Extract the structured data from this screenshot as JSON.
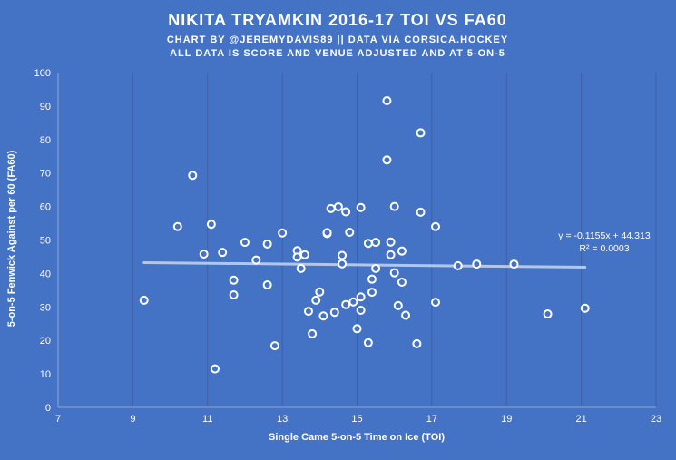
{
  "chart_data": {
    "type": "scatter",
    "title": "NIKITA  TRYAMKIN  2016-17 TOI VS FA60",
    "subtitle_lines": [
      "CHART BY @JEREMYDAVIS89  || DATA VIA CORSICA.HOCKEY",
      "ALL DATA IS SCORE AND VENUE ADJUSTED AND AT 5-ON-5"
    ],
    "xlabel": "Single Came 5-on-5 Time on Ice (TOI)",
    "ylabel": "5-on-5 Fenwick Against per 60 (FA60)",
    "xlim": [
      7,
      23
    ],
    "ylim": [
      0,
      100
    ],
    "x_ticks": [
      7,
      9,
      11,
      13,
      15,
      17,
      19,
      21,
      23
    ],
    "y_ticks": [
      0,
      10,
      20,
      30,
      40,
      50,
      60,
      70,
      80,
      90,
      100
    ],
    "grid": "vertical",
    "trendline": {
      "slope": -0.1155,
      "intercept": 44.313,
      "x_range": [
        9.3,
        21.1
      ],
      "equation": "y = -0.1155x + 44.313",
      "r_squared": "R² = 0.0003"
    },
    "points": [
      {
        "x": 9.3,
        "y": 32
      },
      {
        "x": 10.2,
        "y": 54
      },
      {
        "x": 10.6,
        "y": 69.3
      },
      {
        "x": 10.9,
        "y": 45.8
      },
      {
        "x": 11.1,
        "y": 54.7
      },
      {
        "x": 11.2,
        "y": 11.5
      },
      {
        "x": 11.4,
        "y": 46.3
      },
      {
        "x": 11.7,
        "y": 38
      },
      {
        "x": 11.7,
        "y": 33.6
      },
      {
        "x": 12.0,
        "y": 49.3
      },
      {
        "x": 12.3,
        "y": 44
      },
      {
        "x": 12.6,
        "y": 48.8
      },
      {
        "x": 12.6,
        "y": 36.6
      },
      {
        "x": 12.8,
        "y": 18.4
      },
      {
        "x": 13.0,
        "y": 52.1
      },
      {
        "x": 13.4,
        "y": 46.8
      },
      {
        "x": 13.4,
        "y": 44.9
      },
      {
        "x": 13.5,
        "y": 41.5
      },
      {
        "x": 13.6,
        "y": 45.6
      },
      {
        "x": 13.7,
        "y": 28.7
      },
      {
        "x": 13.8,
        "y": 22
      },
      {
        "x": 13.9,
        "y": 32
      },
      {
        "x": 14.0,
        "y": 34.5
      },
      {
        "x": 14.1,
        "y": 27.3
      },
      {
        "x": 14.2,
        "y": 51.9
      },
      {
        "x": 14.2,
        "y": 52.2
      },
      {
        "x": 14.3,
        "y": 59.4
      },
      {
        "x": 14.4,
        "y": 28.4
      },
      {
        "x": 14.5,
        "y": 59.9
      },
      {
        "x": 14.6,
        "y": 45.4
      },
      {
        "x": 14.6,
        "y": 42.9
      },
      {
        "x": 14.7,
        "y": 58.4
      },
      {
        "x": 14.7,
        "y": 30.7
      },
      {
        "x": 14.8,
        "y": 52.3
      },
      {
        "x": 14.9,
        "y": 31.5
      },
      {
        "x": 15.0,
        "y": 23.5
      },
      {
        "x": 15.1,
        "y": 59.7
      },
      {
        "x": 15.1,
        "y": 33
      },
      {
        "x": 15.1,
        "y": 29
      },
      {
        "x": 15.3,
        "y": 19.3
      },
      {
        "x": 15.3,
        "y": 49
      },
      {
        "x": 15.4,
        "y": 38.3
      },
      {
        "x": 15.4,
        "y": 34.4
      },
      {
        "x": 15.5,
        "y": 49.3
      },
      {
        "x": 15.5,
        "y": 41.5
      },
      {
        "x": 15.8,
        "y": 91.6
      },
      {
        "x": 15.8,
        "y": 73.9
      },
      {
        "x": 15.9,
        "y": 49.4
      },
      {
        "x": 15.9,
        "y": 45.6
      },
      {
        "x": 16.0,
        "y": 60
      },
      {
        "x": 16.0,
        "y": 40.2
      },
      {
        "x": 16.1,
        "y": 30.4
      },
      {
        "x": 16.2,
        "y": 46.7
      },
      {
        "x": 16.2,
        "y": 37.4
      },
      {
        "x": 16.3,
        "y": 27.5
      },
      {
        "x": 16.6,
        "y": 19
      },
      {
        "x": 16.7,
        "y": 82
      },
      {
        "x": 16.7,
        "y": 58.3
      },
      {
        "x": 17.1,
        "y": 54
      },
      {
        "x": 17.1,
        "y": 31.4
      },
      {
        "x": 17.7,
        "y": 42.3
      },
      {
        "x": 18.2,
        "y": 42.8
      },
      {
        "x": 19.2,
        "y": 42.8
      },
      {
        "x": 20.1,
        "y": 27.9
      },
      {
        "x": 21.1,
        "y": 29.6
      }
    ]
  },
  "colors": {
    "background": "#4472c4",
    "grid": "#3f60a4",
    "axis": "#8ea7d6",
    "marker_fill": "#4472c4",
    "marker_stroke": "#ffffff",
    "trendline": "#b4c7e7"
  }
}
